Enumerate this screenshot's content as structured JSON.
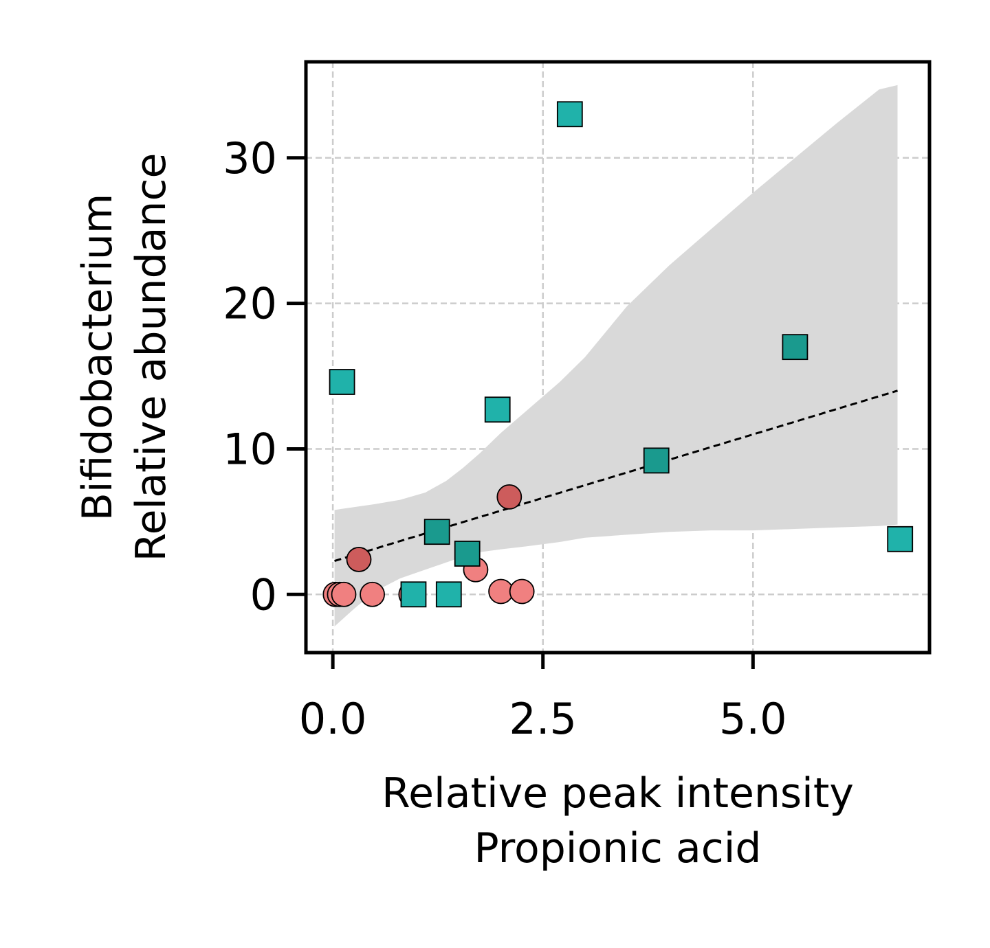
{
  "chart_data": {
    "type": "scatter",
    "title": "",
    "xlabel": [
      "Relative peak intensity",
      "Propionic acid"
    ],
    "ylabel": [
      "Bifidobacterium",
      "Relative abundance"
    ],
    "xlim": [
      -0.32,
      7.1
    ],
    "ylim": [
      -4.0,
      36.6
    ],
    "xticks": [
      0.0,
      2.5,
      5.0
    ],
    "xtick_labels": [
      "0.0",
      "2.5",
      "5.0"
    ],
    "yticks": [
      0,
      10,
      20,
      30
    ],
    "ytick_labels": [
      "0",
      "10",
      "20",
      "30"
    ],
    "grid": true,
    "legend": null,
    "series": [
      {
        "marker": "circle",
        "points": [
          {
            "x": 0.03,
            "y": 0.0,
            "color": "#f08080"
          },
          {
            "x": 0.08,
            "y": 0.0,
            "color": "#f08080"
          },
          {
            "x": 0.13,
            "y": 0.0,
            "color": "#f08080"
          },
          {
            "x": 0.31,
            "y": 2.4,
            "color": "#cd5c5c"
          },
          {
            "x": 0.47,
            "y": 0.0,
            "color": "#f08080"
          },
          {
            "x": 0.93,
            "y": 0.0,
            "color": "#f08080"
          },
          {
            "x": 1.7,
            "y": 1.7,
            "color": "#f08080"
          },
          {
            "x": 2.0,
            "y": 0.2,
            "color": "#f08080"
          },
          {
            "x": 2.1,
            "y": 6.7,
            "color": "#cd5c5c"
          },
          {
            "x": 2.25,
            "y": 0.2,
            "color": "#f08080"
          }
        ]
      },
      {
        "marker": "square",
        "points": [
          {
            "x": 0.11,
            "y": 14.6,
            "color": "#20b2aa"
          },
          {
            "x": 0.96,
            "y": 0.0,
            "color": "#20b2aa"
          },
          {
            "x": 1.24,
            "y": 4.3,
            "color": "#1a9a8e"
          },
          {
            "x": 1.38,
            "y": 0.0,
            "color": "#20b2aa"
          },
          {
            "x": 1.6,
            "y": 2.8,
            "color": "#1a9a8e"
          },
          {
            "x": 1.96,
            "y": 12.7,
            "color": "#20b2aa"
          },
          {
            "x": 2.82,
            "y": 33.0,
            "color": "#20b2aa"
          },
          {
            "x": 3.85,
            "y": 9.2,
            "color": "#1a9a8e"
          },
          {
            "x": 5.5,
            "y": 17.0,
            "color": "#1a9a8e"
          },
          {
            "x": 6.75,
            "y": 3.8,
            "color": "#20b2aa"
          }
        ]
      }
    ],
    "regression": {
      "x": [
        0.02,
        6.72
      ],
      "y": [
        2.3,
        14.0
      ],
      "style": "dashed",
      "color": "#000000"
    },
    "confidence_band": {
      "color": "#d9d9d9",
      "x": [
        0.02,
        0.25,
        0.5,
        0.8,
        1.1,
        1.35,
        1.55,
        1.75,
        2.0,
        2.3,
        2.7,
        3.0,
        3.5,
        4.0,
        4.5,
        5.0,
        5.5,
        6.0,
        6.5,
        6.72
      ],
      "upper": [
        5.8,
        6.0,
        6.2,
        6.5,
        7.0,
        7.8,
        8.7,
        9.7,
        11.1,
        12.6,
        14.6,
        16.3,
        19.8,
        22.6,
        25.1,
        27.6,
        30.0,
        32.4,
        34.7,
        35.0
      ],
      "lower": [
        -2.2,
        -1.0,
        0.2,
        1.1,
        1.7,
        2.2,
        2.6,
        2.9,
        3.1,
        3.3,
        3.6,
        3.9,
        4.1,
        4.3,
        4.4,
        4.4,
        4.5,
        4.6,
        4.7,
        4.8
      ]
    }
  }
}
